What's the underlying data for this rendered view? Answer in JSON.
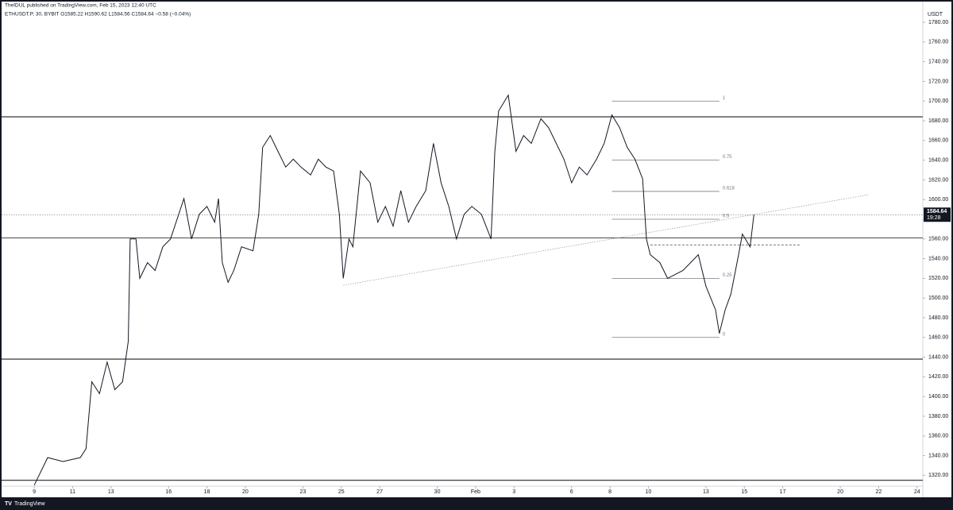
{
  "header": "TheIDUL published on TradingView.com, Feb 15, 2023 12:40 UTC",
  "footer": "TradingView",
  "chart_data": {
    "type": "line",
    "title": "ETHUSDT.P, 30, BYBIT  O1585.22  H1590.62  L1584.56  C1584.64  −0.58 (−0.04%)",
    "y_unit": "USDT",
    "countdown": "19:28",
    "color": "#131722",
    "grid": false,
    "x": [
      0,
      0.7,
      1.5,
      2.4,
      2.7,
      3.0,
      3.4,
      3.8,
      4.2,
      4.6,
      4.9,
      5.0,
      5.3,
      5.5,
      5.9,
      6.3,
      6.7,
      7.1,
      7.8,
      8.2,
      8.6,
      9.0,
      9.4,
      9.6,
      9.8,
      10.1,
      10.4,
      10.8,
      11.4,
      11.7,
      11.9,
      12.3,
      12.7,
      13.1,
      13.5,
      13.9,
      14.4,
      14.8,
      15.2,
      15.6,
      15.9,
      16.1,
      16.4,
      16.6,
      17.0,
      17.5,
      17.9,
      18.3,
      18.7,
      19.1,
      19.5,
      19.9,
      20.4,
      20.8,
      21.2,
      21.6,
      22.0,
      22.4,
      22.8,
      23.3,
      23.8,
      24.0,
      24.2,
      24.7,
      25.1,
      25.5,
      25.9,
      26.4,
      26.8,
      27.2,
      27.6,
      28.0,
      28.4,
      28.8,
      29.3,
      29.7,
      30.1,
      30.5,
      30.9,
      31.3,
      31.7,
      31.9,
      32.1,
      32.6,
      33.0,
      33.4,
      33.8,
      34.2,
      34.6,
      35.0,
      35.5,
      35.7,
      36.0,
      36.3,
      36.7,
      36.9,
      37.3,
      37.5
    ],
    "values": [
      1310,
      1338,
      1334,
      1338,
      1347,
      1415,
      1403,
      1435,
      1407,
      1415,
      1456,
      1560,
      1560,
      1520,
      1536,
      1528,
      1552,
      1560,
      1601,
      1560,
      1585,
      1593,
      1577,
      1601,
      1536,
      1516,
      1528,
      1552,
      1548,
      1585,
      1653,
      1665,
      1649,
      1633,
      1641,
      1633,
      1625,
      1641,
      1633,
      1629,
      1585,
      1520,
      1560,
      1552,
      1629,
      1617,
      1577,
      1593,
      1573,
      1609,
      1577,
      1593,
      1609,
      1657,
      1617,
      1593,
      1560,
      1585,
      1593,
      1585,
      1560,
      1649,
      1690,
      1706,
      1649,
      1665,
      1657,
      1682,
      1673,
      1657,
      1641,
      1617,
      1633,
      1625,
      1641,
      1657,
      1686,
      1673,
      1653,
      1641,
      1621,
      1560,
      1544,
      1536,
      1520,
      1524,
      1528,
      1536,
      1544,
      1512,
      1488,
      1464,
      1488,
      1504,
      1544,
      1565,
      1552,
      1584.64
    ],
    "xlim": [
      -1.7,
      46.3
    ],
    "ylim": [
      1309,
      1801
    ],
    "xticks": [
      {
        "value": 0,
        "label": "9"
      },
      {
        "value": 2,
        "label": "11"
      },
      {
        "value": 4,
        "label": "13"
      },
      {
        "value": 7,
        "label": "16"
      },
      {
        "value": 9,
        "label": "18"
      },
      {
        "value": 11,
        "label": "20"
      },
      {
        "value": 14,
        "label": "23"
      },
      {
        "value": 16,
        "label": "25"
      },
      {
        "value": 18,
        "label": "27"
      },
      {
        "value": 21,
        "label": "30"
      },
      {
        "value": 23,
        "label": "Feb"
      },
      {
        "value": 25,
        "label": "3"
      },
      {
        "value": 28,
        "label": "6"
      },
      {
        "value": 30,
        "label": "8"
      },
      {
        "value": 32,
        "label": "10"
      },
      {
        "value": 35,
        "label": "13"
      },
      {
        "value": 37,
        "label": "15"
      },
      {
        "value": 39,
        "label": "17"
      },
      {
        "value": 42,
        "label": "20"
      },
      {
        "value": 44,
        "label": "22"
      },
      {
        "value": 46,
        "label": "24"
      }
    ],
    "yticks": [
      {
        "value": 1320,
        "label": "1320.00"
      },
      {
        "value": 1340,
        "label": "1340.00"
      },
      {
        "value": 1360,
        "label": "1360.00"
      },
      {
        "value": 1380,
        "label": "1380.00"
      },
      {
        "value": 1400,
        "label": "1400.00"
      },
      {
        "value": 1420,
        "label": "1420.00"
      },
      {
        "value": 1440,
        "label": "1440.00"
      },
      {
        "value": 1460,
        "label": "1460.00"
      },
      {
        "value": 1480,
        "label": "1480.00"
      },
      {
        "value": 1500,
        "label": "1500.00"
      },
      {
        "value": 1520,
        "label": "1520.00"
      },
      {
        "value": 1540,
        "label": "1540.00"
      },
      {
        "value": 1560,
        "label": "1560.00"
      },
      {
        "value": 1580,
        "label": "1580.00"
      },
      {
        "value": 1600,
        "label": "1600.00"
      },
      {
        "value": 1620,
        "label": "1620.00"
      },
      {
        "value": 1640,
        "label": "1640.00"
      },
      {
        "value": 1660,
        "label": "1660.00"
      },
      {
        "value": 1680,
        "label": "1680.00"
      },
      {
        "value": 1700,
        "label": "1700.00"
      },
      {
        "value": 1720,
        "label": "1720.00"
      },
      {
        "value": 1740,
        "label": "1740.00"
      },
      {
        "value": 1760,
        "label": "1760.00"
      },
      {
        "value": 1780,
        "label": "1780.00"
      }
    ],
    "levels": [
      1684,
      1561,
      1438,
      1315
    ],
    "fib": {
      "x": [
        30.1,
        35.7
      ],
      "levels": [
        {
          "value": 1700,
          "label": "1"
        },
        {
          "value": 1640,
          "label": "0.75"
        },
        {
          "value": 1608.3,
          "label": "0.618"
        },
        {
          "value": 1580,
          "label": "0.5"
        },
        {
          "value": 1520,
          "label": "0.25"
        },
        {
          "value": 1460,
          "label": "0"
        }
      ]
    },
    "trendline": {
      "x": [
        16.1,
        43.5
      ],
      "values": [
        1513,
        1605
      ]
    },
    "dashed": {
      "x": [
        32.1,
        39.9
      ],
      "value": 1554
    }
  }
}
